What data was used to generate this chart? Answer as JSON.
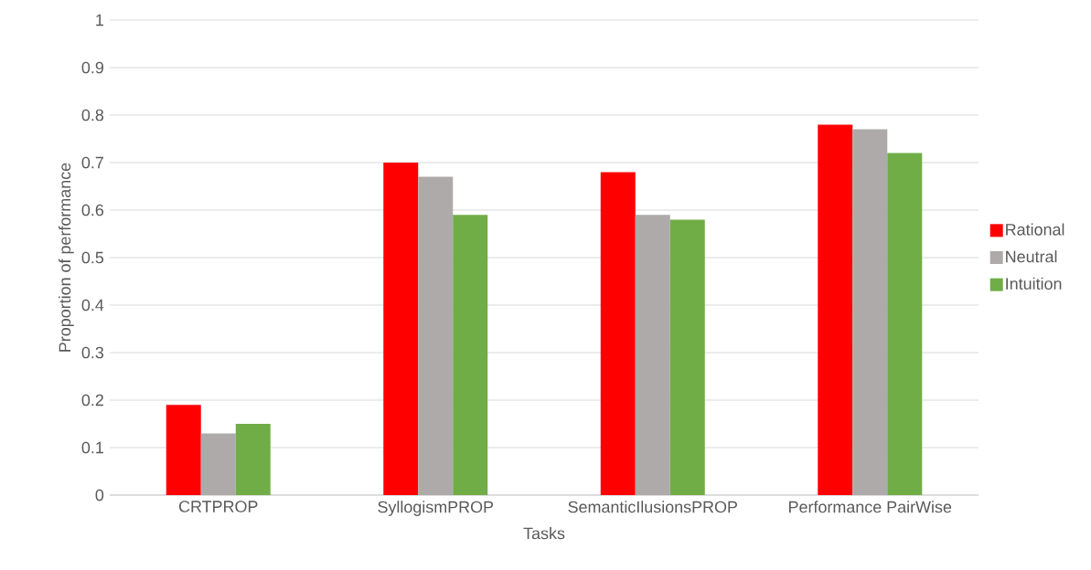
{
  "chart_data": {
    "type": "bar",
    "xlabel": "Tasks",
    "ylabel": "Proportion of performance",
    "categories": [
      "CRTPROP",
      "SyllogismPROP",
      "SemanticIlusionsPROP",
      "Performance PairWise"
    ],
    "series": [
      {
        "name": "Rational",
        "color": "#ff0000",
        "values": [
          0.19,
          0.7,
          0.68,
          0.78
        ]
      },
      {
        "name": "Neutral",
        "color": "#aeaaaa",
        "values": [
          0.13,
          0.67,
          0.59,
          0.77
        ]
      },
      {
        "name": "Intuition",
        "color": "#70ad47",
        "values": [
          0.15,
          0.59,
          0.58,
          0.72
        ]
      }
    ],
    "ylim": [
      0,
      1
    ],
    "yticks": [
      0,
      0.1,
      0.2,
      0.3,
      0.4,
      0.5,
      0.6,
      0.7,
      0.8,
      0.9,
      1
    ],
    "grid": "y",
    "legend": "right"
  }
}
